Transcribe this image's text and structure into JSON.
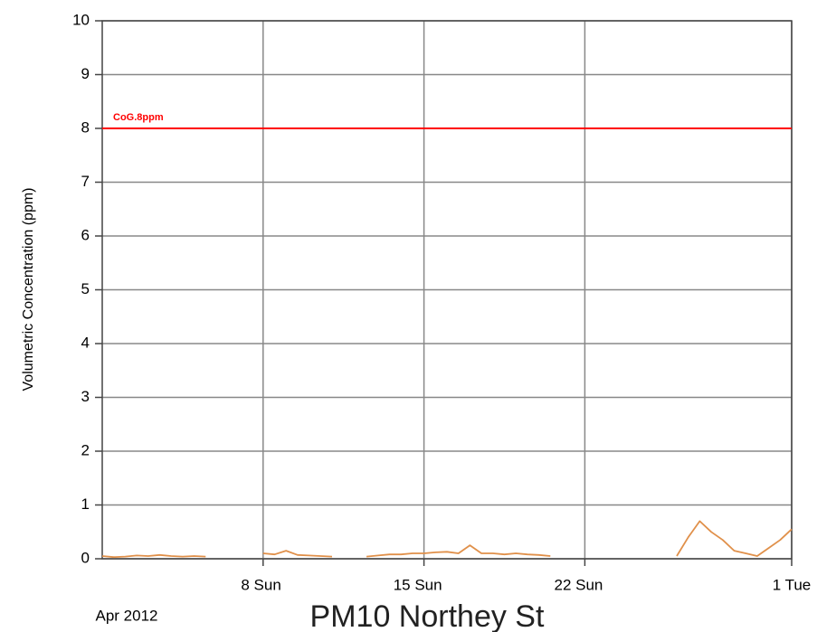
{
  "chart_data": {
    "type": "line",
    "title": "PM10 Northey St",
    "period_label": "Apr 2012",
    "y_label": "Volumetric Concentration (ppm)",
    "x": [
      1,
      1.5,
      2,
      2.5,
      3,
      3.5,
      4,
      4.5,
      5,
      5.5,
      6,
      6.5,
      7,
      7.5,
      8,
      8.5,
      9,
      9.5,
      10,
      10.5,
      11,
      11.5,
      12,
      12.5,
      13,
      13.5,
      14,
      14.5,
      15,
      15.5,
      16,
      16.5,
      17,
      17.5,
      18,
      18.5,
      19,
      19.5,
      20,
      20.5,
      21,
      21.5,
      22,
      22.5,
      23,
      23.5,
      24,
      24.5,
      25,
      25.5,
      26,
      26.5,
      27,
      27.5,
      28,
      28.5,
      29,
      29.5,
      30,
      30.5,
      31
    ],
    "series": [
      {
        "color": "#e0904a",
        "values": [
          0.05,
          0.03,
          0.04,
          0.06,
          0.05,
          0.07,
          0.05,
          0.04,
          0.05,
          0.04,
          null,
          null,
          null,
          null,
          0.1,
          0.08,
          0.15,
          0.07,
          0.06,
          0.05,
          0.04,
          null,
          null,
          0.04,
          0.06,
          0.08,
          0.08,
          0.1,
          0.1,
          0.12,
          0.13,
          0.1,
          0.25,
          0.1,
          0.1,
          0.08,
          0.1,
          0.08,
          0.07,
          0.05,
          null,
          null,
          null,
          null,
          null,
          null,
          null,
          null,
          null,
          null,
          0.05,
          0.4,
          0.7,
          0.5,
          0.35,
          0.15,
          0.1,
          0.05,
          0.2,
          0.35,
          0.55
        ]
      }
    ],
    "reference_lines": [
      {
        "value": 8,
        "label": "CoG.8ppm",
        "color": "#ff0000"
      }
    ],
    "xlim": [
      1,
      31
    ],
    "xticks": [
      {
        "value": 8,
        "label": "8 Sun"
      },
      {
        "value": 15,
        "label": "15 Sun"
      },
      {
        "value": 22,
        "label": "22 Sun"
      },
      {
        "value": 31,
        "label": "1 Tue"
      }
    ],
    "ylim": [
      0,
      10
    ],
    "yticks": [
      0,
      1,
      2,
      3,
      4,
      5,
      6,
      7,
      8,
      9,
      10
    ],
    "grid": true
  }
}
